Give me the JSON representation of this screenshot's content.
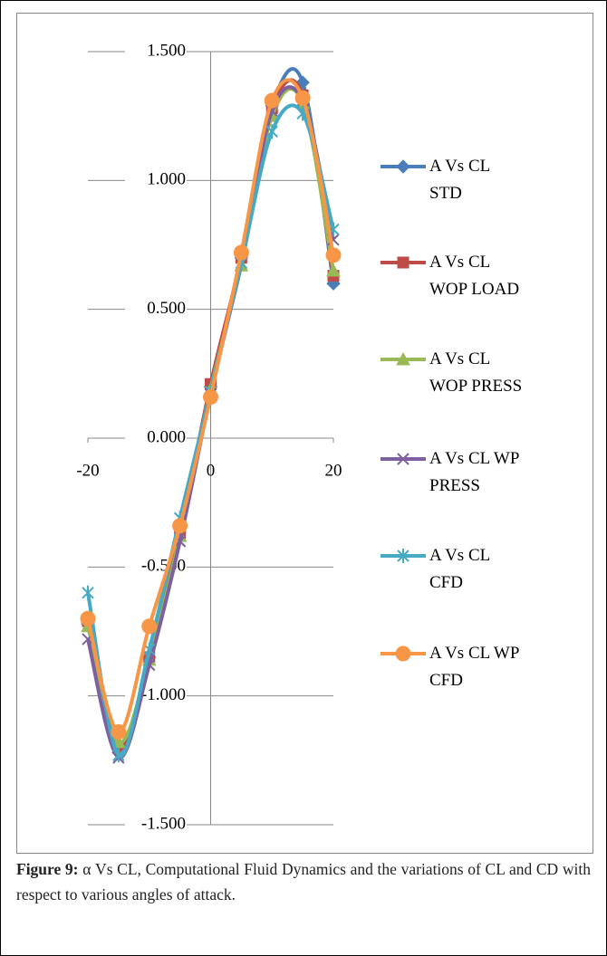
{
  "chart_data": {
    "type": "line",
    "x": [
      -20,
      -15,
      -10,
      -5,
      0,
      5,
      10,
      15,
      20
    ],
    "xlim": [
      -20,
      20
    ],
    "xticks": [
      -20,
      0,
      20
    ],
    "ylim": [
      -1.5,
      1.5
    ],
    "yticks": [
      {
        "value": -1.5,
        "label": "-1.500"
      },
      {
        "value": -1.0,
        "label": "-1.000"
      },
      {
        "value": -0.5,
        "label": "-0.500"
      },
      {
        "value": 0,
        "label": "0.000"
      },
      {
        "value": 0.5,
        "label": "0.500"
      },
      {
        "value": 1.0,
        "label": "1.000"
      },
      {
        "value": 1.5,
        "label": "1.500"
      }
    ],
    "grid": true,
    "legend": "right",
    "series": [
      {
        "name": "A Vs CL STD",
        "color": "#4a7ebb",
        "marker": "diamond",
        "values": [
          -0.72,
          -1.22,
          -0.85,
          -0.35,
          0.2,
          0.7,
          1.29,
          1.38,
          0.6
        ]
      },
      {
        "name": "A Vs CL WOP LOAD",
        "color": "#be4b48",
        "marker": "square",
        "values": [
          -0.71,
          -1.2,
          -0.85,
          -0.37,
          0.21,
          0.7,
          1.28,
          1.33,
          0.63
        ]
      },
      {
        "name": "A Vs CL WOP PRESS",
        "color": "#98b954",
        "marker": "triangle",
        "values": [
          -0.73,
          -1.18,
          -0.86,
          -0.38,
          0.19,
          0.67,
          1.25,
          1.3,
          0.65
        ]
      },
      {
        "name": "A Vs CL WP PRESS",
        "color": "#7d60a0",
        "marker": "x",
        "values": [
          -0.78,
          -1.24,
          -0.88,
          -0.4,
          0.17,
          0.68,
          1.27,
          1.31,
          0.77
        ]
      },
      {
        "name": "A Vs CL CFD",
        "color": "#46aac5",
        "marker": "star",
        "values": [
          -0.6,
          -1.23,
          -0.82,
          -0.31,
          0.18,
          0.68,
          1.19,
          1.26,
          0.81
        ]
      },
      {
        "name": "A Vs CL WP CFD",
        "color": "#f79646",
        "marker": "circle",
        "values": [
          -0.7,
          -1.14,
          -0.73,
          -0.34,
          0.16,
          0.72,
          1.31,
          1.32,
          0.71
        ]
      }
    ]
  },
  "figure": {
    "label": "Figure 9:",
    "text": "α Vs CL, Computational Fluid Dynamics and the variations of CL and CD with respect to various angles of attack."
  }
}
